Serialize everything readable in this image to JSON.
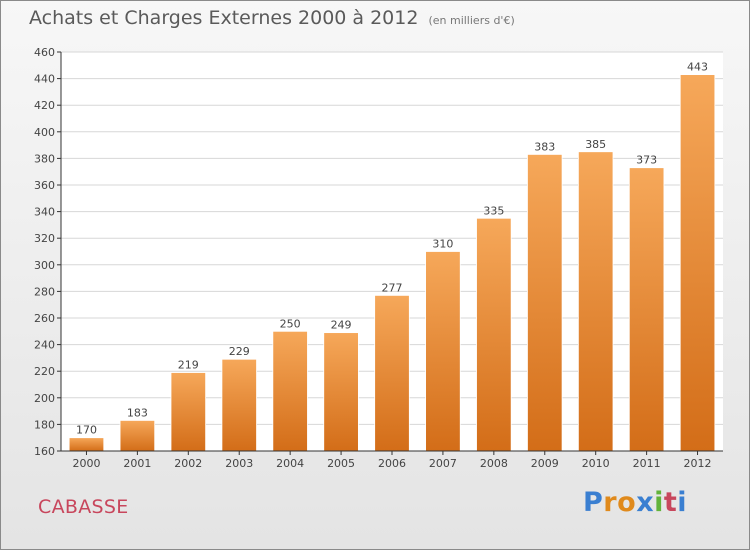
{
  "title": "Achats et Charges Externes 2000 à 2012",
  "unit": "(en milliers d'€)",
  "commune": "CABASSE",
  "logo": {
    "text": "Proxiti",
    "letter_colors": [
      "#3a7fd1",
      "#e08a1c",
      "#e08a1c",
      "#3a7fd1",
      "#62b33a",
      "#c8465c",
      "#3a7fd1"
    ]
  },
  "colors": {
    "bar_top": "#f6a85a",
    "bar_bottom": "#d36d18",
    "grid": "#d7d7d7",
    "axis": "#333333",
    "text": "#444444"
  },
  "chart_data": {
    "type": "bar",
    "categories": [
      "2000",
      "2001",
      "2002",
      "2003",
      "2004",
      "2005",
      "2006",
      "2007",
      "2008",
      "2009",
      "2010",
      "2011",
      "2012"
    ],
    "values": [
      170,
      183,
      219,
      229,
      250,
      249,
      277,
      310,
      335,
      383,
      385,
      373,
      443
    ],
    "ylim": [
      160,
      460
    ],
    "yticks": [
      160,
      180,
      200,
      220,
      240,
      260,
      280,
      300,
      320,
      340,
      360,
      380,
      400,
      420,
      440,
      460
    ],
    "data_labels": true,
    "grid": true
  }
}
